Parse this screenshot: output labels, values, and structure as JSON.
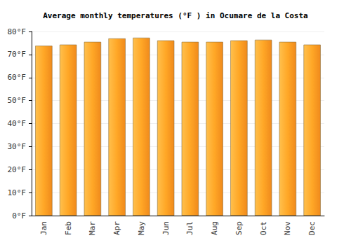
{
  "chart_data": {
    "type": "bar",
    "title": "Average monthly temperatures (°F ) in Ocumare de la Costa",
    "categories": [
      "Jan",
      "Feb",
      "Mar",
      "Apr",
      "May",
      "Jun",
      "Jul",
      "Aug",
      "Sep",
      "Oct",
      "Nov",
      "Dec"
    ],
    "values": [
      73.8,
      74.3,
      75.5,
      77.0,
      77.3,
      76.1,
      75.5,
      75.5,
      76.1,
      76.4,
      75.5,
      74.3
    ],
    "color": "#ffa726",
    "ylim": [
      0,
      80
    ],
    "yticks": [
      {
        "value": 0,
        "label": "0°F"
      },
      {
        "value": 10,
        "label": "10°F"
      },
      {
        "value": 20,
        "label": "20°F"
      },
      {
        "value": 30,
        "label": "30°F"
      },
      {
        "value": 40,
        "label": "40°F"
      },
      {
        "value": 50,
        "label": "50°F"
      },
      {
        "value": 60,
        "label": "60°F"
      },
      {
        "value": 70,
        "label": "70°F"
      },
      {
        "value": 80,
        "label": "80°F"
      }
    ],
    "grid": true
  }
}
